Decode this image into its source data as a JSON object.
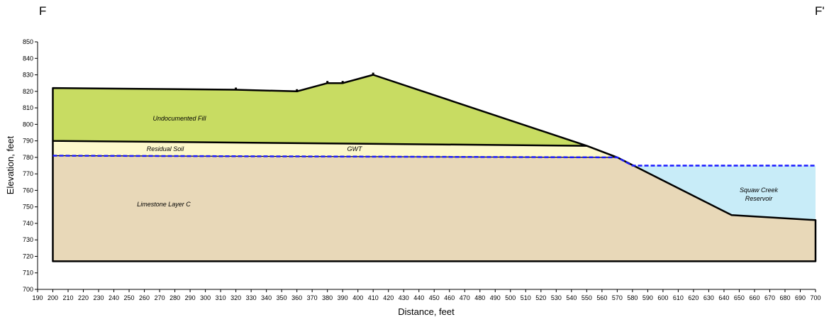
{
  "section": {
    "left_label": "F",
    "right_label": "F'"
  },
  "axes": {
    "xlabel": "Distance, feet",
    "ylabel": "Elevation, feet",
    "xlim": [
      190,
      700
    ],
    "ylim": [
      700,
      850
    ],
    "xticks": [
      190,
      200,
      210,
      220,
      230,
      240,
      250,
      260,
      270,
      280,
      290,
      300,
      310,
      320,
      330,
      340,
      350,
      360,
      370,
      380,
      390,
      400,
      410,
      420,
      430,
      440,
      450,
      460,
      470,
      480,
      490,
      500,
      510,
      520,
      530,
      540,
      550,
      560,
      570,
      580,
      590,
      600,
      610,
      620,
      630,
      640,
      650,
      660,
      670,
      680,
      690,
      700
    ],
    "yticks": [
      700,
      710,
      720,
      730,
      740,
      750,
      760,
      770,
      780,
      790,
      800,
      810,
      820,
      830,
      840,
      850
    ]
  },
  "colors": {
    "fill": "#c8dc62",
    "residual_soil": "#fdf8cc",
    "limestone": "#e8d8b8",
    "reservoir": "#c8ecf8",
    "water_line": "#1a1aff"
  },
  "layers": {
    "undocumented_fill": {
      "label": "Undocumented Fill",
      "outline": [
        [
          200,
          822
        ],
        [
          320,
          821
        ],
        [
          360,
          820
        ],
        [
          380,
          825
        ],
        [
          390,
          825
        ],
        [
          410,
          830
        ],
        [
          550,
          787
        ],
        [
          200,
          790
        ]
      ]
    },
    "residual_soil": {
      "label": "Residual Soil",
      "outline": [
        [
          200,
          790
        ],
        [
          550,
          787
        ],
        [
          570,
          780
        ],
        [
          200,
          781
        ]
      ]
    },
    "limestone": {
      "label": "Limestone Layer C",
      "outline": [
        [
          200,
          781
        ],
        [
          570,
          780
        ],
        [
          645,
          745
        ],
        [
          700,
          742
        ],
        [
          700,
          717
        ],
        [
          200,
          717
        ]
      ]
    },
    "reservoir": {
      "label_line1": "Squaw Creek",
      "label_line2": "Reservoir",
      "outline": [
        [
          580,
          775
        ],
        [
          700,
          775
        ],
        [
          700,
          742
        ],
        [
          645,
          745
        ]
      ]
    }
  },
  "gwt": {
    "label": "GWT",
    "line": [
      [
        200,
        781
      ],
      [
        570,
        780
      ],
      [
        580,
        775
      ],
      [
        700,
        775
      ]
    ]
  },
  "markers": [
    [
      320,
      821
    ],
    [
      360,
      820
    ],
    [
      380,
      825
    ],
    [
      390,
      825
    ],
    [
      410,
      830
    ]
  ]
}
